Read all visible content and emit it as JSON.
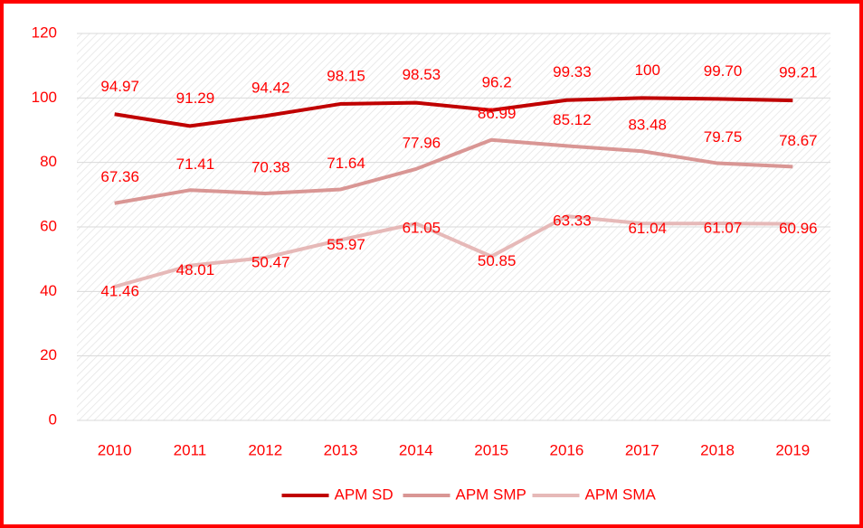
{
  "chart_data": {
    "type": "line",
    "categories": [
      "2010",
      "2011",
      "2012",
      "2013",
      "2014",
      "2015",
      "2016",
      "2017",
      "2018",
      "2019"
    ],
    "series": [
      {
        "name": "APM SD",
        "color": "#c00000",
        "values": [
          94.97,
          91.29,
          94.42,
          98.15,
          98.53,
          96.2,
          99.33,
          100,
          99.7,
          99.21
        ],
        "value_labels": [
          "94.97",
          "91.29",
          "94.42",
          "98.15",
          "98.53",
          "96.2",
          "99.33",
          "100",
          "99.70",
          "99.21"
        ]
      },
      {
        "name": "APM SMP",
        "color": "#d99694",
        "values": [
          67.36,
          71.41,
          70.38,
          71.64,
          77.96,
          86.99,
          85.12,
          83.48,
          79.75,
          78.67
        ]
      },
      {
        "name": "APM SMA",
        "color": "#e6b9b8",
        "values": [
          41.46,
          48.01,
          50.47,
          55.97,
          61.05,
          50.85,
          63.33,
          61.04,
          61.07,
          60.96
        ]
      }
    ],
    "ylim": [
      0,
      120
    ],
    "yticks": [
      0,
      20,
      40,
      60,
      80,
      100,
      120
    ],
    "grid": true,
    "legend": "bottom"
  }
}
